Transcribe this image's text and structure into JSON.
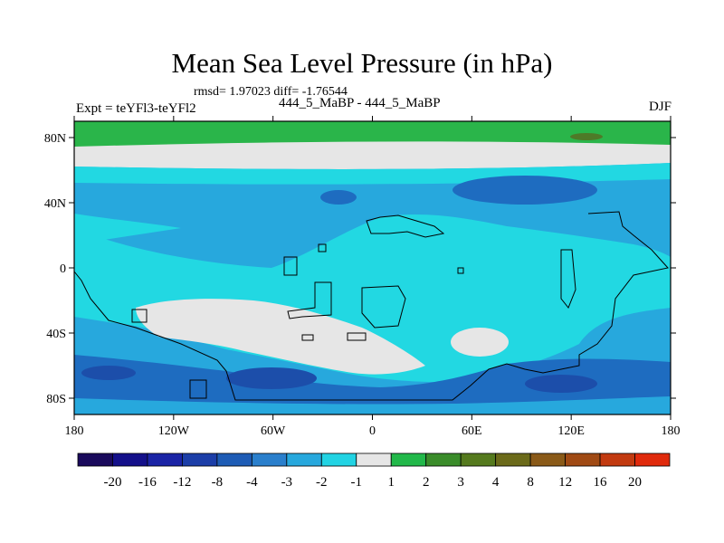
{
  "title": "Mean Sea Level Pressure (in hPa)",
  "stats": "rmsd= 1.97023 diff= -1.76544",
  "experiment": "Expt = teYFl3-teYFl2",
  "case": "444_5_MaBP - 444_5_MaBP",
  "season": "DJF",
  "lat_ticks": [
    {
      "label": "80N",
      "lat": 80
    },
    {
      "label": "40N",
      "lat": 40
    },
    {
      "label": "0",
      "lat": 0
    },
    {
      "label": "40S",
      "lat": -40
    },
    {
      "label": "80S",
      "lat": -80
    }
  ],
  "lon_ticks": [
    {
      "label": "180",
      "lon": -180
    },
    {
      "label": "120W",
      "lon": -120
    },
    {
      "label": "60W",
      "lon": -60
    },
    {
      "label": "0",
      "lon": 0
    },
    {
      "label": "60E",
      "lon": 60
    },
    {
      "label": "120E",
      "lon": 120
    },
    {
      "label": "180",
      "lon": 180
    }
  ],
  "colorbar": {
    "labels": [
      "-20",
      "-16",
      "-12",
      "-8",
      "-4",
      "-3",
      "-2",
      "-1",
      "1",
      "2",
      "3",
      "4",
      "8",
      "12",
      "16",
      "20"
    ],
    "colors": [
      "#1a0a5c",
      "#14108a",
      "#1b24a6",
      "#1c3ea8",
      "#1e5cb5",
      "#2a7fcc",
      "#27a8dd",
      "#22d3e3",
      "#e6e6e6",
      "#22b84a",
      "#3a8c2a",
      "#557a1e",
      "#6b6a1a",
      "#8a5a18",
      "#a04a14",
      "#c23a10",
      "#e02a0c"
    ]
  },
  "field_colors": {
    "green": "#2ab54a",
    "land_dark": "#4e7a28",
    "grey": "#e6e6e6",
    "cyan": "#22d8e2",
    "light_blue": "#27a8dd",
    "mid_blue": "#1e6cc0",
    "dark_blue": "#1c4eaa"
  }
}
